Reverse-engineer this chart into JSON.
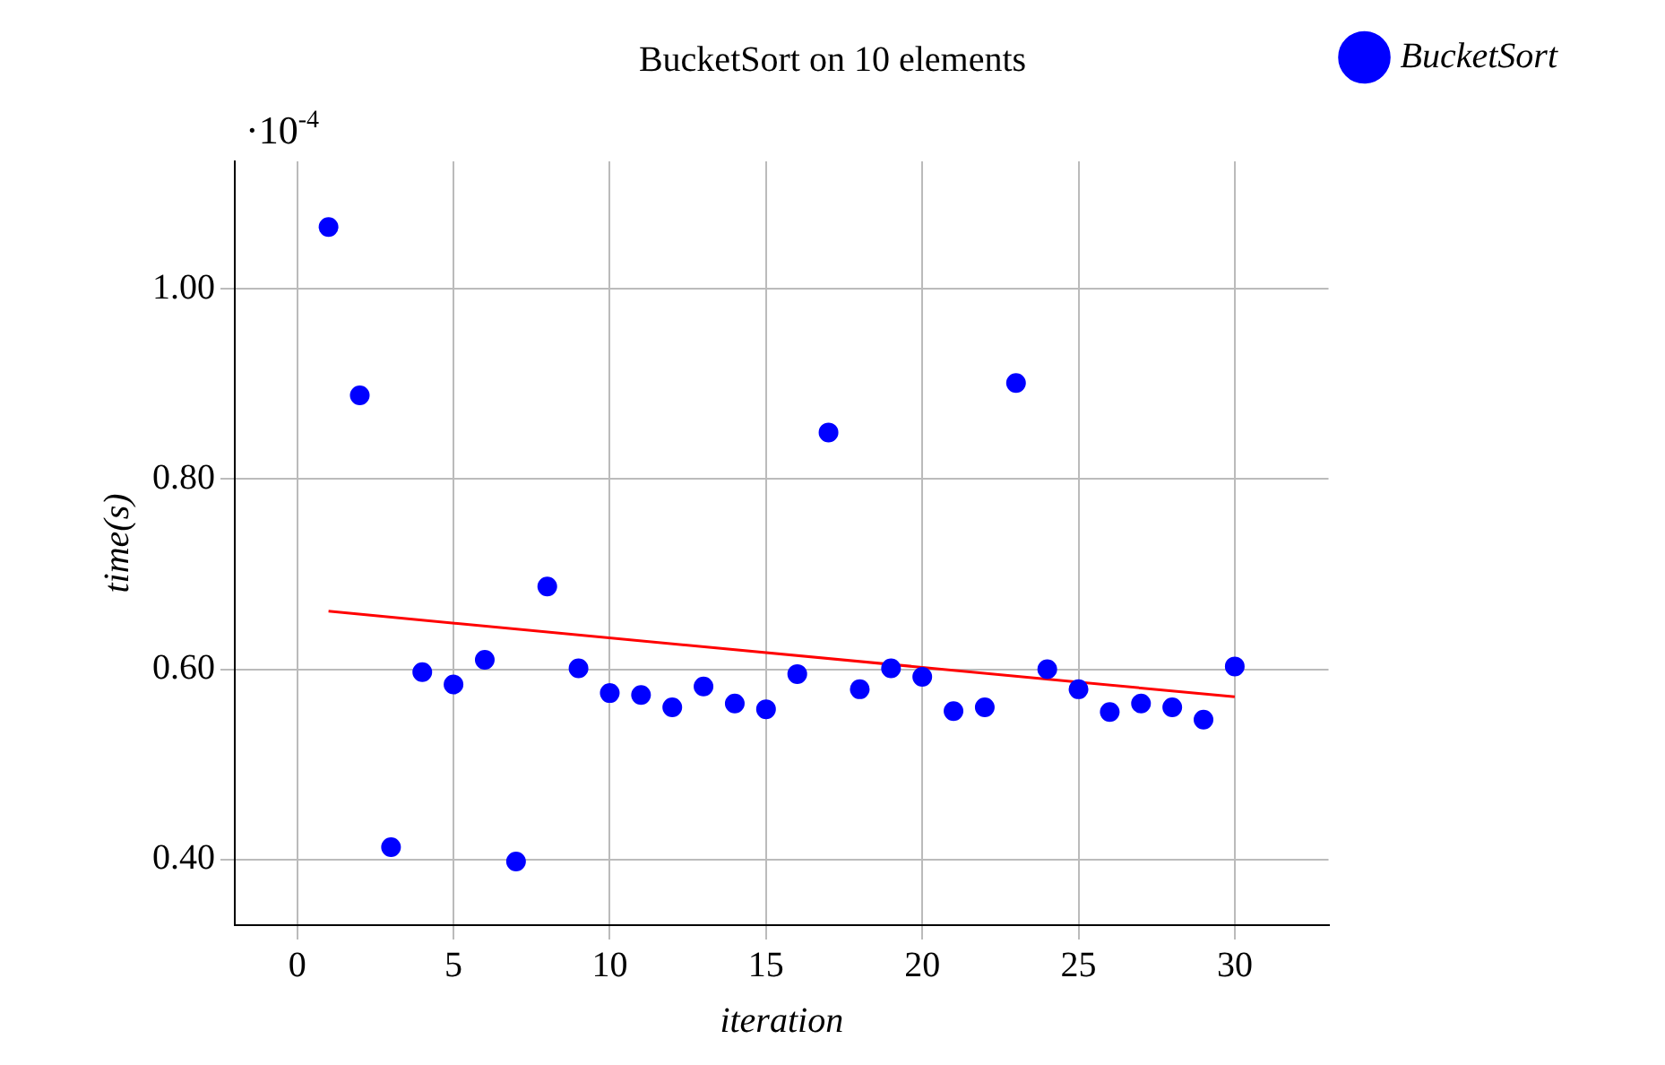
{
  "chart_data": {
    "type": "scatter",
    "title": "BucketSort on 10 elements",
    "xlabel": "iteration",
    "ylabel": "time(s)",
    "annotations": [
      "·10$^{-4}$"
    ],
    "x": [
      1,
      2,
      3,
      4,
      5,
      6,
      7,
      8,
      9,
      10,
      11,
      12,
      13,
      14,
      15,
      16,
      17,
      18,
      19,
      20,
      21,
      22,
      23,
      24,
      25,
      26,
      27,
      28,
      29,
      30
    ],
    "series": [
      {
        "name": "BucketSort",
        "color": "#0000ff",
        "marker": "circle",
        "values": [
          1.065,
          0.888,
          0.413,
          0.597,
          0.584,
          0.61,
          0.398,
          0.687,
          0.601,
          0.575,
          0.573,
          0.56,
          0.582,
          0.564,
          0.558,
          0.595,
          0.849,
          0.579,
          0.601,
          0.592,
          0.556,
          0.56,
          0.901,
          0.6,
          0.579,
          0.555,
          0.564,
          0.56,
          0.547,
          0.603
        ]
      },
      {
        "type": "line",
        "color": "#ff0000",
        "marker": "none",
        "x": [
          1,
          30
        ],
        "values": [
          0.661,
          0.571
        ]
      }
    ],
    "xlim": [
      -2,
      33
    ],
    "ylim": [
      0.331,
      1.134
    ],
    "xticks": [
      0,
      5,
      10,
      15,
      20,
      25,
      30
    ],
    "yticks": [
      {
        "value": 0.4,
        "label": "0.40"
      },
      {
        "value": 0.6,
        "label": "0.60"
      },
      {
        "value": 0.8,
        "label": "0.80"
      },
      {
        "value": 1,
        "label": "1.00"
      }
    ],
    "grid": true,
    "legend": "top right"
  }
}
